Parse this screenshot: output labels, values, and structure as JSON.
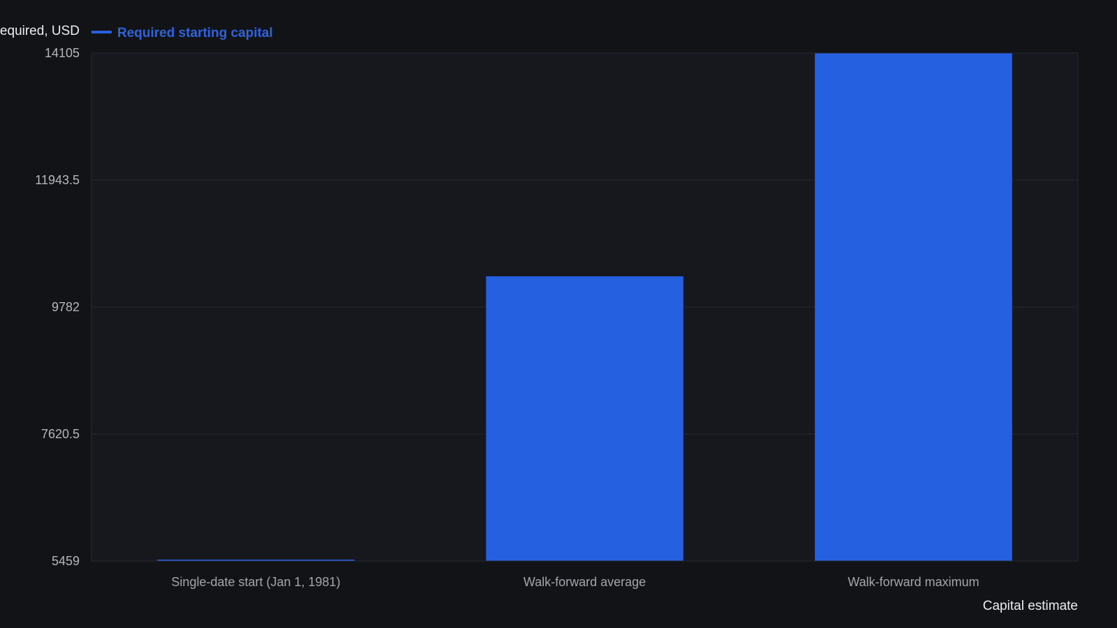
{
  "chart_data": {
    "type": "bar",
    "categories": [
      "Single-date start (Jan 1, 1981)",
      "Walk-forward average",
      "Walk-forward maximum"
    ],
    "series": [
      {
        "name": "Required starting capital",
        "values": [
          5459,
          10305,
          14105
        ],
        "color": "#2560e0"
      }
    ],
    "ylabel": "Capital required, USD",
    "xlabel": "Capital estimate",
    "ylim": [
      5459,
      14105
    ],
    "yticks": [
      "5459",
      "7620.5",
      "9782",
      "11943.5",
      "14105"
    ],
    "grid": true,
    "legend_position": "top-left"
  },
  "colors": {
    "background": "#111317",
    "plot_background": "#16181d",
    "grid": "#272a31",
    "bar": "#2560e0",
    "legend_text": "#2f63dc"
  }
}
